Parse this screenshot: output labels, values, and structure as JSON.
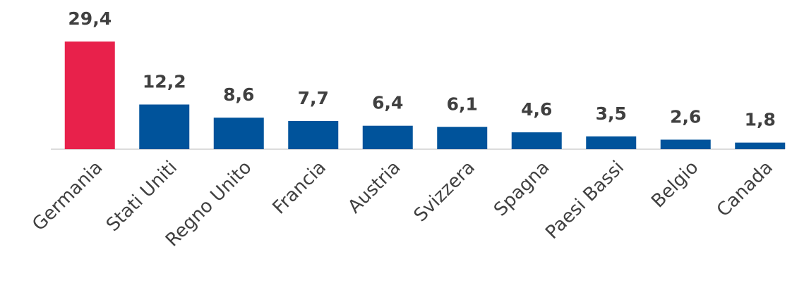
{
  "chart_data": {
    "type": "bar",
    "categories": [
      "Germania",
      "Stati Uniti",
      "Regno Unito",
      "Francia",
      "Austria",
      "Svizzera",
      "Spagna",
      "Paesi Bassi",
      "Belgio",
      "Canada"
    ],
    "values": [
      29.4,
      12.2,
      8.6,
      7.7,
      6.4,
      6.1,
      4.6,
      3.5,
      2.6,
      1.8
    ],
    "value_labels": [
      "29,4",
      "12,2",
      "8,6",
      "7,7",
      "6,4",
      "6,1",
      "4,6",
      "3,5",
      "2,6",
      "1,8"
    ],
    "colors": [
      "#e8214b",
      "#00539b",
      "#00539b",
      "#00539b",
      "#00539b",
      "#00539b",
      "#00539b",
      "#00539b",
      "#00539b",
      "#00539b"
    ]
  }
}
